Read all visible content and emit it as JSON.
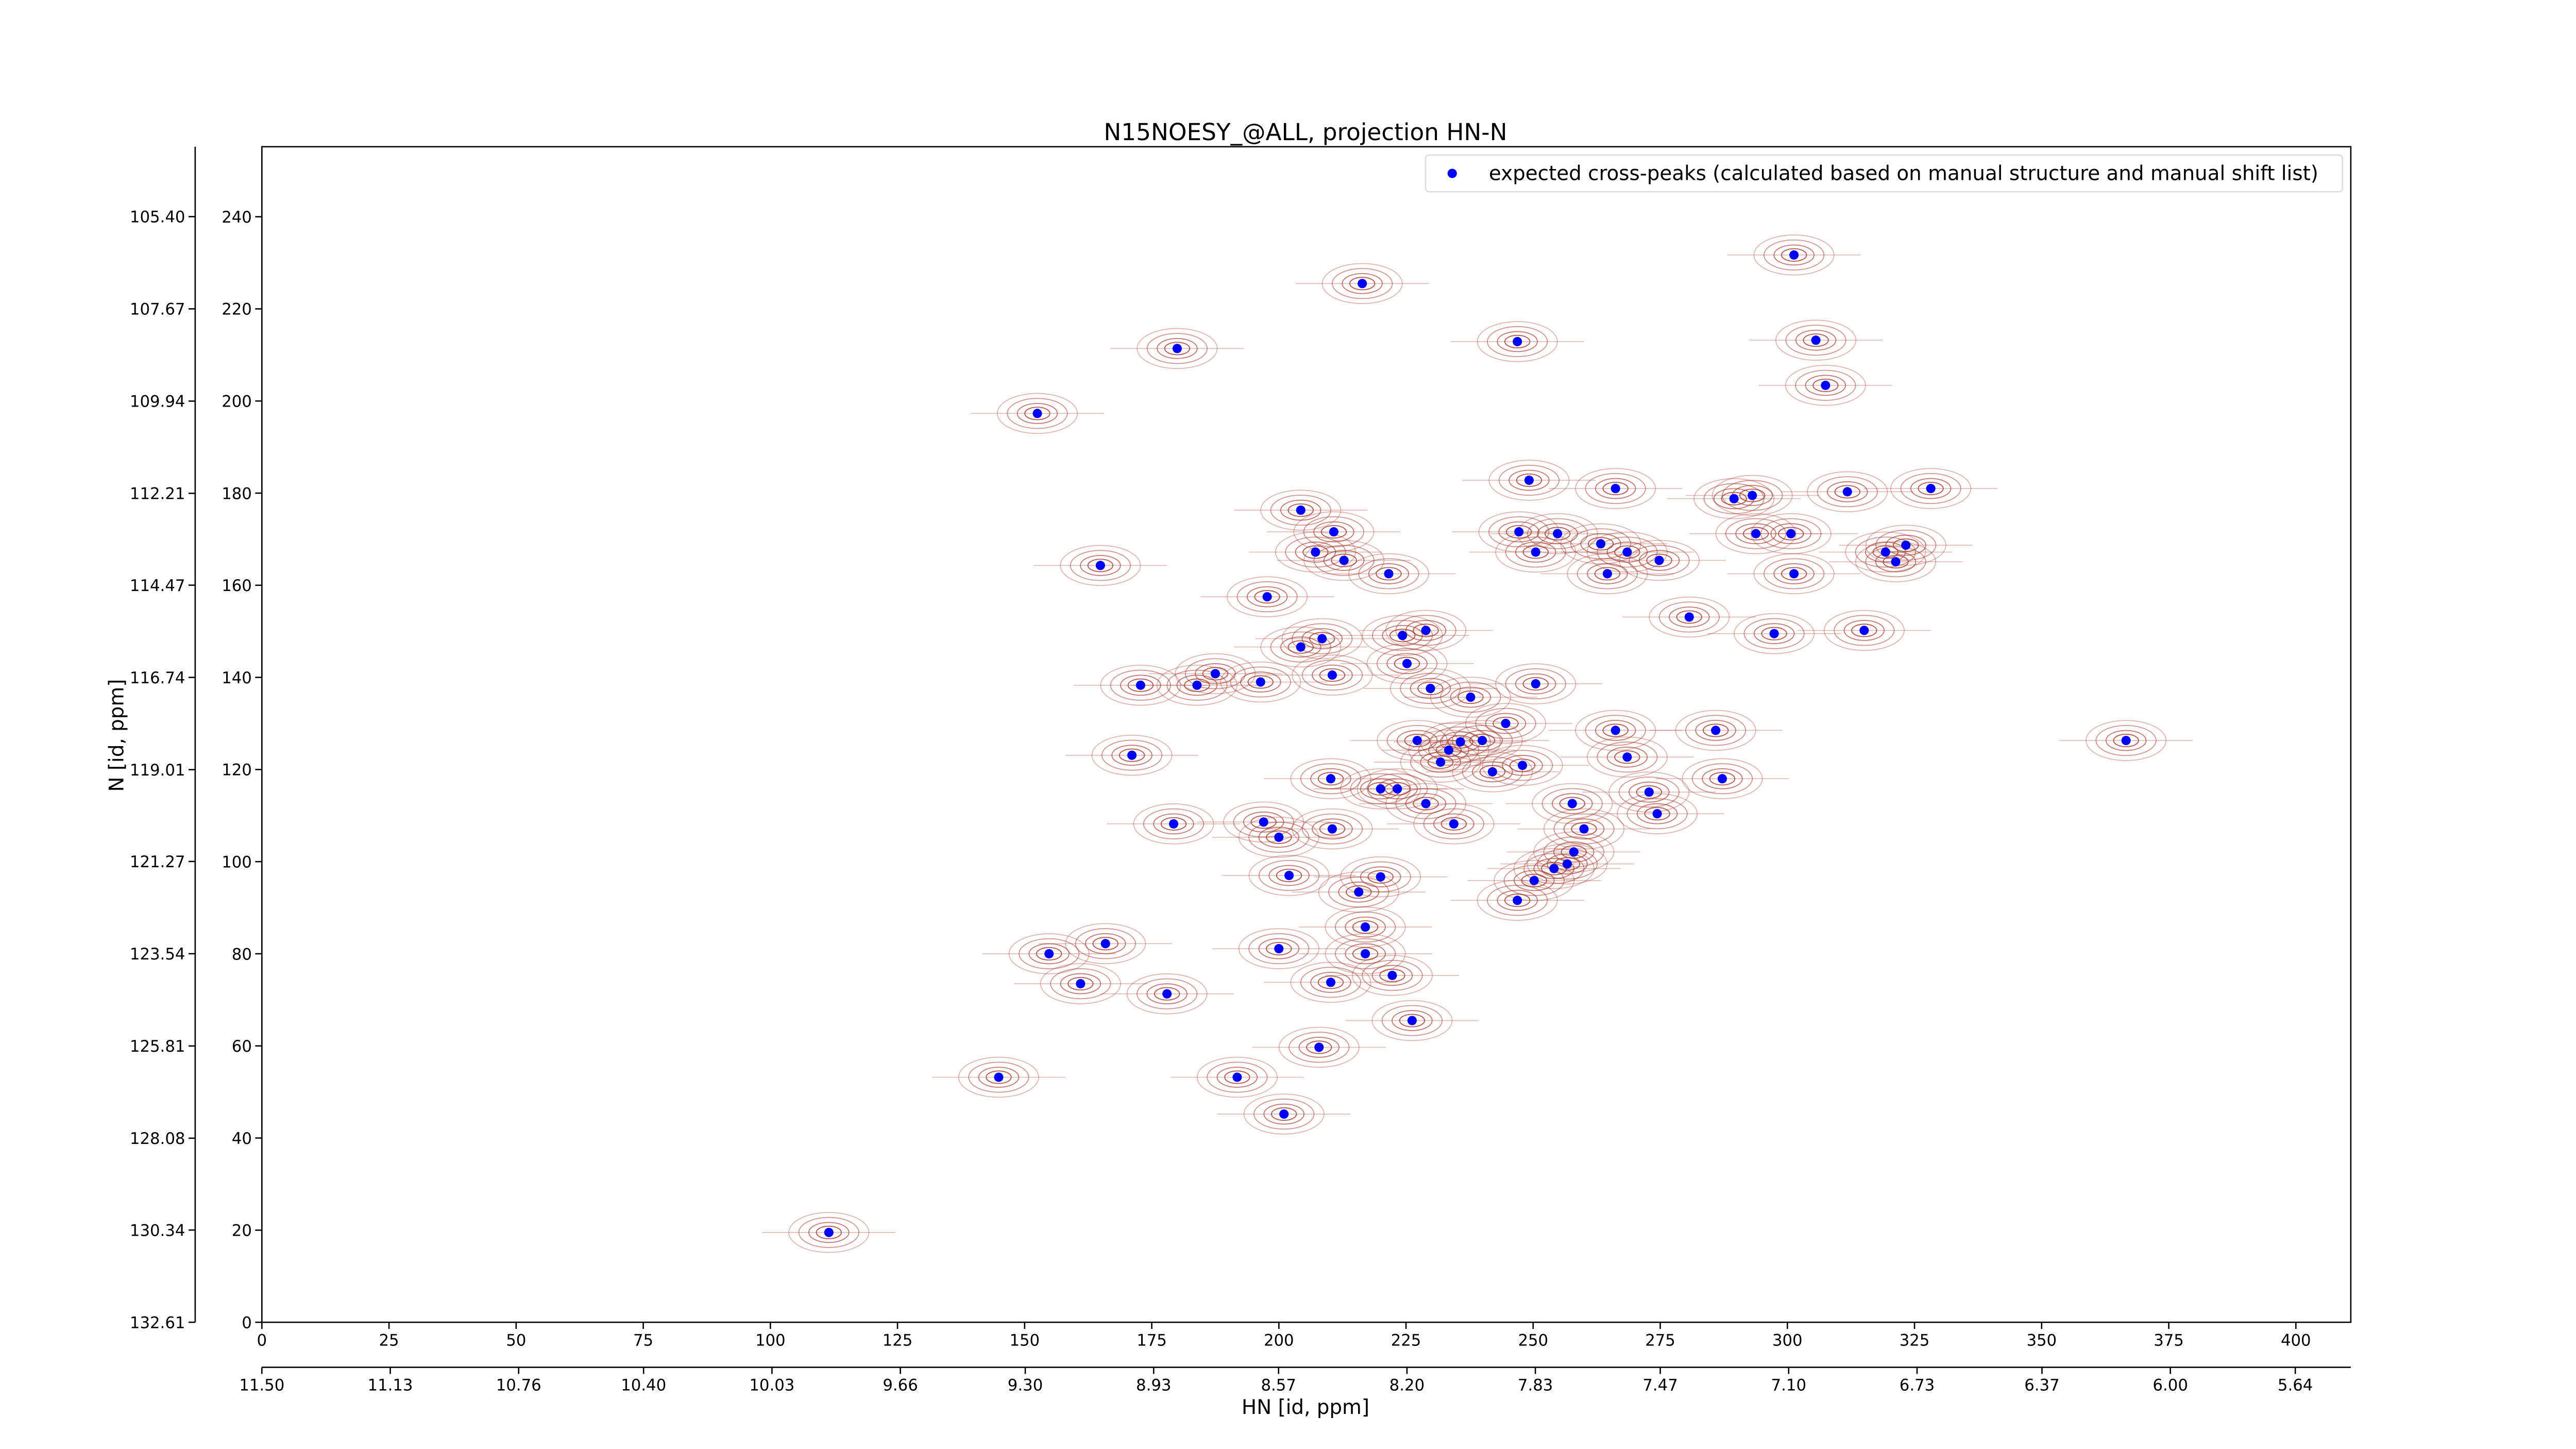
{
  "chart_data": {
    "type": "scatter",
    "title": "N15NOESY_@ALL, projection HN-N",
    "x_label": "HN [id, ppm]",
    "y_label": "N [id, ppm]",
    "xlim": [
      0,
      410.8
    ],
    "ylim": [
      0,
      255.2
    ],
    "xticks": [
      0,
      25,
      50,
      75,
      100,
      125,
      150,
      175,
      200,
      225,
      250,
      275,
      300,
      325,
      350,
      375,
      400
    ],
    "yticks": [
      0,
      20,
      40,
      60,
      80,
      100,
      120,
      140,
      160,
      180,
      200,
      220,
      240
    ],
    "x2lim": [
      11.5,
      5.48
    ],
    "x2ticks": [
      {
        "value": 11.5,
        "label": "11.50"
      },
      {
        "value": 11.13,
        "label": "11.13"
      },
      {
        "value": 10.76,
        "label": "10.76"
      },
      {
        "value": 10.4,
        "label": "10.40"
      },
      {
        "value": 10.03,
        "label": "10.03"
      },
      {
        "value": 9.66,
        "label": "9.66"
      },
      {
        "value": 9.3,
        "label": "9.30"
      },
      {
        "value": 8.93,
        "label": "8.93"
      },
      {
        "value": 8.57,
        "label": "8.57"
      },
      {
        "value": 8.2,
        "label": "8.20"
      },
      {
        "value": 7.83,
        "label": "7.83"
      },
      {
        "value": 7.47,
        "label": "7.47"
      },
      {
        "value": 7.1,
        "label": "7.10"
      },
      {
        "value": 6.73,
        "label": "6.73"
      },
      {
        "value": 6.37,
        "label": "6.37"
      },
      {
        "value": 6.0,
        "label": "6.00"
      },
      {
        "value": 5.64,
        "label": "5.64"
      }
    ],
    "y2lim": [
      132.61,
      103.68
    ],
    "y2ticks": [
      {
        "value": 132.61,
        "label": "132.61"
      },
      {
        "value": 130.34,
        "label": "130.34"
      },
      {
        "value": 128.08,
        "label": "128.08"
      },
      {
        "value": 125.81,
        "label": "125.81"
      },
      {
        "value": 123.54,
        "label": "123.54"
      },
      {
        "value": 121.27,
        "label": "121.27"
      },
      {
        "value": 119.01,
        "label": "119.01"
      },
      {
        "value": 116.74,
        "label": "116.74"
      },
      {
        "value": 114.47,
        "label": "114.47"
      },
      {
        "value": 112.21,
        "label": "112.21"
      },
      {
        "value": 109.94,
        "label": "109.94"
      },
      {
        "value": 107.67,
        "label": "107.67"
      },
      {
        "value": 105.4,
        "label": "105.40"
      }
    ],
    "legend": "upper right",
    "contour_color": "#a33a30",
    "x": [
      301.3,
      216.4,
      305.6,
      180.0,
      246.9,
      307.5,
      152.5,
      249.2,
      266.2,
      328.2,
      311.8,
      289.5,
      293.1,
      204.3,
      210.8,
      247.2,
      254.8,
      293.8,
      300.7,
      263.3,
      207.2,
      212.8,
      250.5,
      268.5,
      319.3,
      323.3,
      164.9,
      274.8,
      321.3,
      264.6,
      301.3,
      221.6,
      197.7,
      280.7,
      228.9,
      315.1,
      297.4,
      224.3,
      208.5,
      204.3,
      225.2,
      210.5,
      187.5,
      183.9,
      196.4,
      172.8,
      250.5,
      229.8,
      237.7,
      244.6,
      266.2,
      285.9,
      227.2,
      235.7,
      240.0,
      233.4,
      268.5,
      231.8,
      247.9,
      171.1,
      242.0,
      210.2,
      287.2,
      220.0,
      223.3,
      272.8,
      257.7,
      228.9,
      274.4,
      179.3,
      210.5,
      234.4,
      260.0,
      197.0,
      200.0,
      258.0,
      256.7,
      254.1,
      202.0,
      220.0,
      250.2,
      215.7,
      246.9,
      217.0,
      165.9,
      200.0,
      154.8,
      217.0,
      210.2,
      222.3,
      161.0,
      178.0,
      226.2,
      207.9,
      144.9,
      191.8,
      201.0,
      111.5,
      366.6
    ],
    "series": [
      {
        "name": "expected cross-peaks (calculated based on manual structure and manual shift list)",
        "color": "#0000ff",
        "values": [
          231.7,
          225.5,
          213.2,
          211.4,
          212.9,
          203.4,
          197.3,
          182.8,
          181.0,
          181.0,
          180.3,
          178.8,
          179.5,
          176.3,
          171.6,
          171.6,
          171.2,
          171.2,
          171.2,
          169.0,
          167.2,
          165.4,
          167.2,
          167.2,
          167.2,
          168.7,
          164.3,
          165.4,
          165.1,
          162.5,
          162.5,
          162.5,
          157.5,
          153.1,
          150.2,
          150.2,
          149.5,
          149.1,
          148.4,
          146.6,
          143.0,
          140.5,
          140.8,
          138.3,
          139.0,
          138.3,
          138.6,
          137.6,
          135.7,
          130.0,
          128.5,
          128.5,
          126.3,
          126.0,
          126.3,
          124.2,
          122.7,
          121.6,
          120.9,
          123.1,
          119.5,
          118.0,
          118.0,
          115.8,
          115.8,
          115.1,
          112.6,
          112.6,
          110.4,
          108.2,
          107.1,
          108.2,
          107.1,
          108.6,
          105.3,
          102.1,
          99.5,
          98.5,
          97.0,
          96.7,
          95.9,
          93.4,
          91.6,
          85.8,
          82.2,
          81.1,
          80.0,
          80.0,
          73.8,
          75.3,
          73.5,
          71.3,
          65.5,
          59.7,
          53.2,
          53.2,
          45.2,
          19.5,
          126.3
        ]
      }
    ]
  }
}
